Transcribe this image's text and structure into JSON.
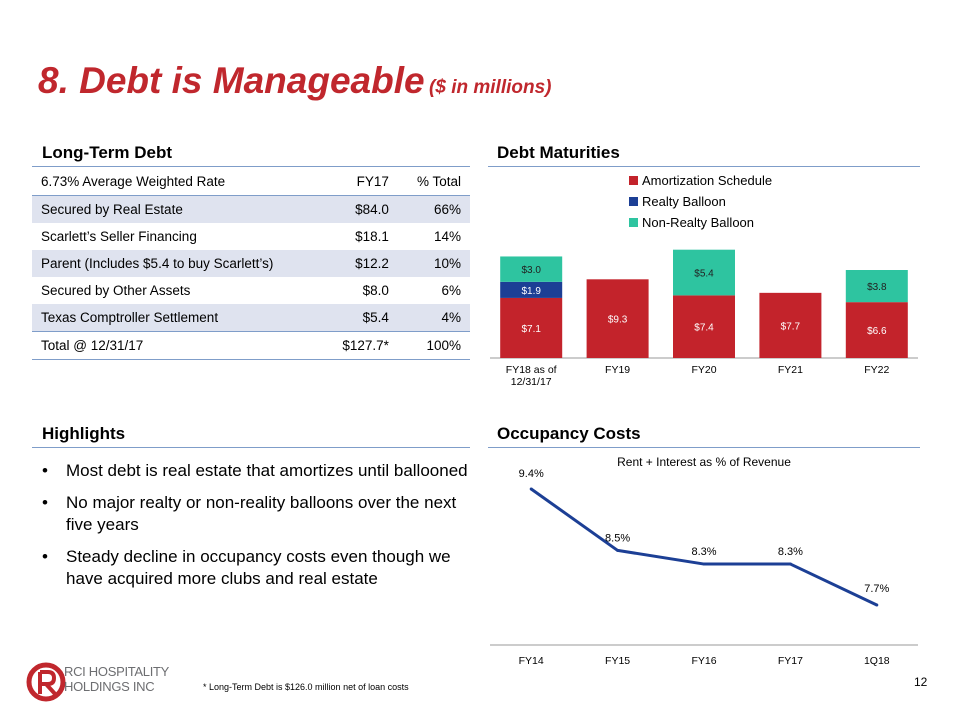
{
  "slide": {
    "title": "8. Debt is Manageable",
    "title_sub": "($ in millions)",
    "page_number": "12",
    "footnote": "* Long-Term Debt is $126.0 million net of loan costs",
    "logo_line1": "RCI HOSPITALITY",
    "logo_line2": "HOLDINGS INC"
  },
  "long_term_debt": {
    "heading": "Long-Term Debt",
    "header": {
      "label": "6.73% Average Weighted Rate",
      "fy17": "FY17",
      "pct": "% Total"
    },
    "rows": [
      {
        "label": "Secured by Real Estate",
        "fy17": "$84.0",
        "pct": "66%"
      },
      {
        "label": "Scarlett’s Seller Financing",
        "fy17": "$18.1",
        "pct": "14%"
      },
      {
        "label": "Parent (Includes $5.4 to buy Scarlett’s)",
        "fy17": "$12.2",
        "pct": "10%"
      },
      {
        "label": "Secured by Other Assets",
        "fy17": "$8.0",
        "pct": "6%"
      },
      {
        "label": "Texas Comptroller Settlement",
        "fy17": "$5.4",
        "pct": "4%"
      }
    ],
    "total": {
      "label": "Total @ 12/31/17",
      "fy17": "$127.7*",
      "pct": "100%"
    }
  },
  "highlights": {
    "heading": "Highlights",
    "bullet": "•",
    "items": [
      "Most debt is real estate that amortizes until ballooned",
      "No major realty or non-reality balloons over the next five years",
      "Steady decline in occupancy costs even though we have acquired more clubs and real estate"
    ]
  },
  "debt_maturities": {
    "heading": "Debt Maturities"
  },
  "occupancy_costs": {
    "heading": "Occupancy Costs"
  },
  "colors": {
    "accent": "#c0272d",
    "rule": "#7f9dc9",
    "amort": "#c3232b",
    "realty": "#1c3f95",
    "nonrealty": "#2ec4a0",
    "line": "#1c3f95"
  },
  "chart_data": [
    {
      "type": "bar",
      "stacked": true,
      "title": "Debt Maturities",
      "categories": [
        "FY18 as of 12/31/17",
        "FY19",
        "FY20",
        "FY21",
        "FY22"
      ],
      "series": [
        {
          "name": "Amortization Schedule",
          "color": "#c3232b",
          "values": [
            7.1,
            9.3,
            7.4,
            7.7,
            6.6
          ],
          "labels": [
            "$7.1",
            "$9.3",
            "$7.4",
            "$7.7",
            "$6.6"
          ]
        },
        {
          "name": "Realty Balloon",
          "color": "#1c3f95",
          "values": [
            1.9,
            0,
            0,
            0,
            0
          ],
          "labels": [
            "$1.9",
            "",
            "",
            "",
            ""
          ]
        },
        {
          "name": "Non-Realty Balloon",
          "color": "#2ec4a0",
          "values": [
            3.0,
            0,
            5.4,
            0,
            3.8
          ],
          "labels": [
            "$3.0",
            "",
            "$5.4",
            "",
            "$3.8"
          ]
        }
      ],
      "ylim": [
        0,
        13
      ],
      "legend": "top"
    },
    {
      "type": "line",
      "title": "Rent + Interest as % of Revenue",
      "categories": [
        "FY14",
        "FY15",
        "FY16",
        "FY17",
        "1Q18"
      ],
      "series": [
        {
          "name": "Rent + Interest as % of Revenue",
          "color": "#1c3f95",
          "values": [
            9.4,
            8.5,
            8.3,
            8.3,
            7.7
          ],
          "labels": [
            "9.4%",
            "8.5%",
            "8.3%",
            "8.3%",
            "7.7%"
          ]
        }
      ],
      "ylim": [
        7.0,
        10.0
      ]
    }
  ]
}
